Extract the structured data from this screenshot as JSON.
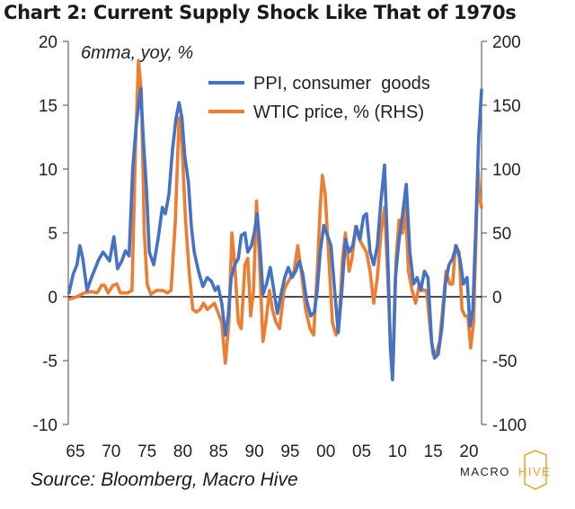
{
  "title": "Chart 2: Current Supply Shock Like That of 1970s",
  "source": "Source: Bloomberg, Macro Hive",
  "logo": {
    "text_left": "MACRO",
    "text_right": "HIVE",
    "accent": "#f0a030"
  },
  "chart_data": {
    "type": "line",
    "annotation": "6mma, yoy, %",
    "xlabels": [
      "65",
      "70",
      "75",
      "80",
      "85",
      "90",
      "95",
      "00",
      "05",
      "10",
      "15",
      "20"
    ],
    "x_range": [
      1964.8,
      2021.9
    ],
    "y_left": {
      "min": -10,
      "max": 20,
      "ticks": [
        -10,
        -5,
        0,
        5,
        10,
        15,
        20
      ]
    },
    "y_right": {
      "min": -100,
      "max": 200,
      "ticks": [
        -100,
        -50,
        0,
        50,
        100,
        150,
        200
      ]
    },
    "series": [
      {
        "name": "PPI, consumer  goods",
        "axis": "left",
        "color": "#4472c4",
        "points": [
          [
            1964.9,
            0.3
          ],
          [
            1965.5,
            1.8
          ],
          [
            1966,
            2.5
          ],
          [
            1966.4,
            4
          ],
          [
            1966.8,
            3
          ],
          [
            1967.4,
            0.5
          ],
          [
            1968,
            1.5
          ],
          [
            1968.5,
            2.2
          ],
          [
            1969,
            2.9
          ],
          [
            1969.6,
            3.5
          ],
          [
            1970,
            3.2
          ],
          [
            1970.5,
            2.8
          ],
          [
            1971.1,
            4.7
          ],
          [
            1971.6,
            2.2
          ],
          [
            1972.2,
            2.8
          ],
          [
            1972.7,
            3.6
          ],
          [
            1973.2,
            3.2
          ],
          [
            1973.7,
            10
          ],
          [
            1974.2,
            13.5
          ],
          [
            1974.8,
            16.3
          ],
          [
            1975.2,
            12
          ],
          [
            1975.6,
            8.5
          ],
          [
            1976,
            3.5
          ],
          [
            1976.6,
            2.5
          ],
          [
            1977.2,
            4.5
          ],
          [
            1977.8,
            7
          ],
          [
            1978.2,
            6.5
          ],
          [
            1978.7,
            8
          ],
          [
            1979.2,
            11.5
          ],
          [
            1979.7,
            14
          ],
          [
            1980.1,
            15.2
          ],
          [
            1980.5,
            14
          ],
          [
            1980.9,
            11
          ],
          [
            1981.4,
            9
          ],
          [
            1981.8,
            5.5
          ],
          [
            1982.2,
            3.5
          ],
          [
            1982.8,
            2
          ],
          [
            1983.4,
            0.8
          ],
          [
            1984,
            1.5
          ],
          [
            1984.6,
            1.2
          ],
          [
            1985.1,
            0.5
          ],
          [
            1985.5,
            0.8
          ],
          [
            1986,
            -0.5
          ],
          [
            1986.5,
            -3
          ],
          [
            1986.9,
            -1.5
          ],
          [
            1987.3,
            1.5
          ],
          [
            1987.8,
            2.5
          ],
          [
            1988.3,
            3
          ],
          [
            1988.7,
            4.8
          ],
          [
            1989.2,
            5
          ],
          [
            1989.6,
            3.5
          ],
          [
            1990.1,
            4
          ],
          [
            1990.5,
            5
          ],
          [
            1990.9,
            6.5
          ],
          [
            1991.3,
            3.8
          ],
          [
            1991.7,
            0.2
          ],
          [
            1992.2,
            1
          ],
          [
            1992.7,
            2.3
          ],
          [
            1993.2,
            0.5
          ],
          [
            1993.7,
            -1.3
          ],
          [
            1994.2,
            0.2
          ],
          [
            1994.7,
            1.5
          ],
          [
            1995.2,
            2.3
          ],
          [
            1995.7,
            1.5
          ],
          [
            1996.2,
            2
          ],
          [
            1996.7,
            2.8
          ],
          [
            1997.2,
            1.8
          ],
          [
            1997.7,
            -0.2
          ],
          [
            1998.3,
            -1.5
          ],
          [
            1998.8,
            -1.2
          ],
          [
            1999.2,
            0.5
          ],
          [
            1999.6,
            3.5
          ],
          [
            2000.1,
            5.6
          ],
          [
            2000.6,
            4.8
          ],
          [
            2001.1,
            4
          ],
          [
            2001.6,
            0.5
          ],
          [
            2002.1,
            -2.8
          ],
          [
            2002.6,
            0.5
          ],
          [
            2003.1,
            4.5
          ],
          [
            2003.6,
            3.5
          ],
          [
            2004.1,
            4
          ],
          [
            2004.6,
            5.5
          ],
          [
            2005.1,
            4.5
          ],
          [
            2005.6,
            6.3
          ],
          [
            2006,
            6.5
          ],
          [
            2006.5,
            3.5
          ],
          [
            2007,
            2.5
          ],
          [
            2007.5,
            4
          ],
          [
            2008,
            7.5
          ],
          [
            2008.5,
            10.3
          ],
          [
            2008.9,
            4
          ],
          [
            2009.3,
            -4
          ],
          [
            2009.6,
            -6.5
          ],
          [
            2010,
            1.5
          ],
          [
            2010.5,
            4.5
          ],
          [
            2011,
            6.5
          ],
          [
            2011.5,
            8.8
          ],
          [
            2012,
            3.5
          ],
          [
            2012.5,
            1
          ],
          [
            2013,
            1.5
          ],
          [
            2013.5,
            0.5
          ],
          [
            2014,
            2
          ],
          [
            2014.5,
            1.5
          ],
          [
            2015,
            -3.5
          ],
          [
            2015.4,
            -4.8
          ],
          [
            2015.9,
            -4.5
          ],
          [
            2016.4,
            -2.5
          ],
          [
            2016.9,
            1
          ],
          [
            2017.4,
            2.5
          ],
          [
            2017.9,
            3
          ],
          [
            2018.4,
            4
          ],
          [
            2018.9,
            3
          ],
          [
            2019.4,
            1
          ],
          [
            2019.9,
            1.5
          ],
          [
            2020.3,
            -2.3
          ],
          [
            2020.7,
            -1
          ],
          [
            2021.1,
            5.5
          ],
          [
            2021.5,
            12.5
          ],
          [
            2021.9,
            16.2
          ]
        ]
      },
      {
        "name": "WTIC price, % (RHS)",
        "axis": "right",
        "color": "#ed7d31",
        "points": [
          [
            1964.9,
            -2
          ],
          [
            1966,
            0
          ],
          [
            1967,
            3
          ],
          [
            1968,
            4
          ],
          [
            1968.8,
            3
          ],
          [
            1969.4,
            9
          ],
          [
            1969.8,
            9
          ],
          [
            1970.3,
            3
          ],
          [
            1971,
            9
          ],
          [
            1971.5,
            10
          ],
          [
            1972,
            3
          ],
          [
            1973,
            3
          ],
          [
            1973.6,
            5
          ],
          [
            1974.1,
            120
          ],
          [
            1974.5,
            185
          ],
          [
            1974.9,
            160
          ],
          [
            1975.3,
            50
          ],
          [
            1975.7,
            10
          ],
          [
            1976.2,
            2
          ],
          [
            1977,
            5
          ],
          [
            1977.8,
            5
          ],
          [
            1978.5,
            3
          ],
          [
            1979,
            5
          ],
          [
            1979.6,
            60
          ],
          [
            1980.1,
            140
          ],
          [
            1980.5,
            120
          ],
          [
            1981,
            60
          ],
          [
            1981.5,
            20
          ],
          [
            1982,
            -10
          ],
          [
            1982.5,
            -12
          ],
          [
            1983,
            -10
          ],
          [
            1983.5,
            -5
          ],
          [
            1984,
            -10
          ],
          [
            1985,
            -5
          ],
          [
            1986,
            -20
          ],
          [
            1986.5,
            -52
          ],
          [
            1987,
            -20
          ],
          [
            1987.4,
            50
          ],
          [
            1987.8,
            25
          ],
          [
            1988.3,
            -20
          ],
          [
            1988.7,
            -25
          ],
          [
            1989.2,
            25
          ],
          [
            1989.6,
            30
          ],
          [
            1990,
            -15
          ],
          [
            1990.4,
            5
          ],
          [
            1990.8,
            75
          ],
          [
            1991.2,
            30
          ],
          [
            1991.7,
            -35
          ],
          [
            1992.1,
            -20
          ],
          [
            1992.6,
            5
          ],
          [
            1993,
            -10
          ],
          [
            1993.5,
            -20
          ],
          [
            1994,
            -25
          ],
          [
            1994.6,
            5
          ],
          [
            1995,
            10
          ],
          [
            1995.5,
            15
          ],
          [
            1996,
            20
          ],
          [
            1996.5,
            40
          ],
          [
            1997,
            20
          ],
          [
            1997.6,
            -10
          ],
          [
            1998.2,
            -25
          ],
          [
            1998.7,
            -30
          ],
          [
            1999.2,
            20
          ],
          [
            1999.6,
            70
          ],
          [
            1999.9,
            95
          ],
          [
            2000.3,
            80
          ],
          [
            2000.8,
            30
          ],
          [
            2001.3,
            -20
          ],
          [
            2001.8,
            -30
          ],
          [
            2002.2,
            -20
          ],
          [
            2002.7,
            30
          ],
          [
            2003.1,
            50
          ],
          [
            2003.6,
            20
          ],
          [
            2004,
            30
          ],
          [
            2004.5,
            55
          ],
          [
            2005,
            45
          ],
          [
            2005.5,
            40
          ],
          [
            2006,
            35
          ],
          [
            2006.5,
            20
          ],
          [
            2007,
            -5
          ],
          [
            2007.5,
            15
          ],
          [
            2008,
            50
          ],
          [
            2008.5,
            70
          ],
          [
            2008.9,
            20
          ],
          [
            2009.3,
            -35
          ],
          [
            2009.7,
            -52
          ],
          [
            2010.1,
            30
          ],
          [
            2010.5,
            60
          ],
          [
            2011,
            50
          ],
          [
            2011.4,
            70
          ],
          [
            2011.8,
            20
          ],
          [
            2012.3,
            5
          ],
          [
            2012.8,
            -5
          ],
          [
            2013.3,
            10
          ],
          [
            2013.8,
            5
          ],
          [
            2014.3,
            5
          ],
          [
            2014.8,
            -25
          ],
          [
            2015.2,
            -45
          ],
          [
            2015.6,
            -45
          ],
          [
            2016.1,
            -35
          ],
          [
            2016.6,
            -5
          ],
          [
            2017,
            20
          ],
          [
            2017.5,
            10
          ],
          [
            2017.9,
            10
          ],
          [
            2018.3,
            40
          ],
          [
            2018.8,
            35
          ],
          [
            2019.2,
            -10
          ],
          [
            2019.6,
            -15
          ],
          [
            2020,
            -15
          ],
          [
            2020.4,
            -40
          ],
          [
            2020.8,
            -20
          ],
          [
            2021.1,
            40
          ],
          [
            2021.4,
            100
          ],
          [
            2021.7,
            75
          ],
          [
            2021.9,
            70
          ]
        ]
      }
    ]
  }
}
